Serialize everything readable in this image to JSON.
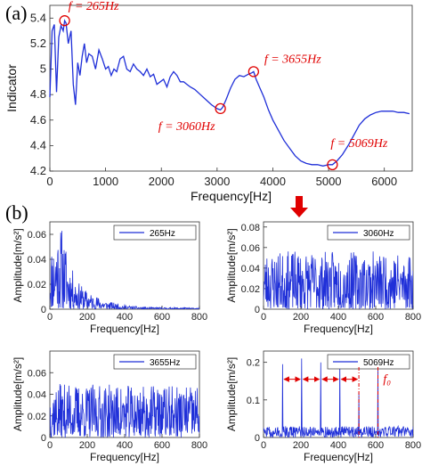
{
  "panel_a_label": "(a)",
  "panel_b_label": "(b)",
  "colors": {
    "series": "#1f2fd8",
    "annotation": "#e00000"
  },
  "chart_data": [
    {
      "type": "line",
      "xlabel": "Frequency[Hz]",
      "ylabel": "Indicator",
      "xlim": [
        0,
        6500
      ],
      "ylim": [
        4.2,
        5.5
      ],
      "xticks": [
        0,
        1000,
        2000,
        3000,
        4000,
        5000,
        6000
      ],
      "yticks": [
        4.2,
        4.4,
        4.6,
        4.8,
        5.0,
        5.2,
        5.4
      ],
      "ytick_labels": [
        "4.2",
        "4.4",
        "4.6",
        "4.8",
        "5",
        "5.2",
        "5.4"
      ],
      "x": [
        0,
        40,
        80,
        120,
        160,
        200,
        240,
        265,
        290,
        330,
        380,
        420,
        460,
        500,
        540,
        580,
        620,
        660,
        700,
        760,
        820,
        880,
        940,
        1000,
        1050,
        1100,
        1150,
        1200,
        1260,
        1320,
        1380,
        1440,
        1500,
        1560,
        1620,
        1680,
        1740,
        1800,
        1860,
        1920,
        1980,
        2040,
        2100,
        2160,
        2220,
        2280,
        2340,
        2400,
        2460,
        2520,
        2600,
        2700,
        2800,
        2900,
        3000,
        3060,
        3100,
        3160,
        3240,
        3320,
        3400,
        3480,
        3560,
        3620,
        3655,
        3700,
        3760,
        3840,
        3920,
        4000,
        4100,
        4200,
        4300,
        4400,
        4500,
        4600,
        4700,
        4800,
        4900,
        5000,
        5069,
        5150,
        5250,
        5350,
        5450,
        5550,
        5650,
        5750,
        5850,
        5950,
        6050,
        6150,
        6250,
        6350,
        6450
      ],
      "y": [
        4.78,
        5.3,
        5.35,
        4.82,
        5.25,
        5.34,
        5.3,
        5.38,
        5.36,
        5.2,
        5.3,
        4.88,
        4.72,
        5.05,
        4.95,
        5.1,
        5.2,
        5.05,
        5.12,
        5.1,
        5.0,
        5.15,
        5.08,
        5.0,
        5.02,
        4.95,
        5.0,
        4.98,
        5.08,
        5.1,
        5.0,
        4.98,
        5.04,
        5.0,
        4.98,
        4.95,
        5.0,
        4.94,
        4.96,
        4.88,
        4.9,
        4.92,
        4.86,
        4.94,
        4.98,
        4.95,
        4.9,
        4.9,
        4.88,
        4.86,
        4.84,
        4.8,
        4.76,
        4.72,
        4.69,
        4.68,
        4.7,
        4.76,
        4.85,
        4.92,
        4.95,
        4.94,
        4.96,
        4.97,
        4.98,
        4.92,
        4.86,
        4.78,
        4.68,
        4.6,
        4.52,
        4.44,
        4.38,
        4.32,
        4.28,
        4.26,
        4.25,
        4.25,
        4.24,
        4.25,
        4.25,
        4.28,
        4.33,
        4.4,
        4.48,
        4.56,
        4.61,
        4.64,
        4.66,
        4.67,
        4.67,
        4.67,
        4.66,
        4.66,
        4.65
      ],
      "annotations": [
        {
          "label": "f = 265Hz",
          "x": 265,
          "y": 5.38
        },
        {
          "label": "f = 3060Hz",
          "x": 3060,
          "y": 4.69
        },
        {
          "label": "f = 3655Hz",
          "x": 3655,
          "y": 4.98
        },
        {
          "label": "f = 5069Hz",
          "x": 5069,
          "y": 4.25
        }
      ]
    },
    {
      "type": "line",
      "legend": "265Hz",
      "xlabel": "Frequency[Hz]",
      "ylabel": "Amplitude[m/s²]",
      "xlim": [
        0,
        800
      ],
      "ylim": [
        0,
        0.07
      ],
      "xticks": [
        0,
        200,
        400,
        600,
        800
      ],
      "yticks": [
        0,
        0.02,
        0.04,
        0.06
      ],
      "ytick_labels": [
        "0",
        "0.02",
        "0.04",
        "0.06"
      ],
      "envelope": [
        [
          0,
          0.045
        ],
        [
          20,
          0.05
        ],
        [
          40,
          0.06
        ],
        [
          60,
          0.062
        ],
        [
          80,
          0.05
        ],
        [
          100,
          0.035
        ],
        [
          150,
          0.02
        ],
        [
          200,
          0.013
        ],
        [
          300,
          0.006
        ],
        [
          400,
          0.003
        ],
        [
          500,
          0.0015
        ],
        [
          800,
          0.001
        ]
      ],
      "seed": 11
    },
    {
      "type": "line",
      "legend": "3060Hz",
      "xlabel": "Frequency[Hz]",
      "ylabel": "Amplitude[m/s²]",
      "xlim": [
        0,
        800
      ],
      "ylim": [
        0,
        0.085
      ],
      "xticks": [
        0,
        200,
        400,
        600,
        800
      ],
      "yticks": [
        0,
        0.02,
        0.04,
        0.06,
        0.08
      ],
      "ytick_labels": [
        "0",
        "0.02",
        "0.04",
        "0.06",
        "0.08"
      ],
      "envelope": [
        [
          0,
          0.045
        ],
        [
          800,
          0.045
        ]
      ],
      "seed": 23
    },
    {
      "type": "line",
      "legend": "3655Hz",
      "xlabel": "Frequency[Hz]",
      "ylabel": "Amplitude[m/s²]",
      "xlim": [
        0,
        800
      ],
      "ylim": [
        0,
        0.08
      ],
      "xticks": [
        0,
        200,
        400,
        600,
        800
      ],
      "yticks": [
        0,
        0.02,
        0.04,
        0.06
      ],
      "ytick_labels": [
        "0",
        "0.02",
        "0.04",
        "0.06"
      ],
      "envelope": [
        [
          0,
          0.04
        ],
        [
          800,
          0.038
        ]
      ],
      "seed": 37
    },
    {
      "type": "line",
      "legend": "5069Hz",
      "xlabel": "Frequency[Hz]",
      "ylabel": "Amplitude[m/s²]",
      "xlim": [
        0,
        800
      ],
      "ylim": [
        0,
        0.23
      ],
      "xticks": [
        0,
        200,
        400,
        600,
        800
      ],
      "yticks": [
        0,
        0.1,
        0.2
      ],
      "ytick_labels": [
        "0",
        "0.1",
        "0.2"
      ],
      "envelope": [
        [
          0,
          0.03
        ],
        [
          800,
          0.03
        ]
      ],
      "peaks": [
        [
          102,
          0.195
        ],
        [
          204,
          0.21
        ],
        [
          306,
          0.2
        ],
        [
          408,
          0.21
        ],
        [
          510,
          0.12
        ],
        [
          612,
          0.205
        ]
      ],
      "harmonic_marker": {
        "label": "f₀",
        "x": [
          102,
          204,
          306,
          408,
          510
        ],
        "y": 0.155
      },
      "seed": 51
    }
  ]
}
